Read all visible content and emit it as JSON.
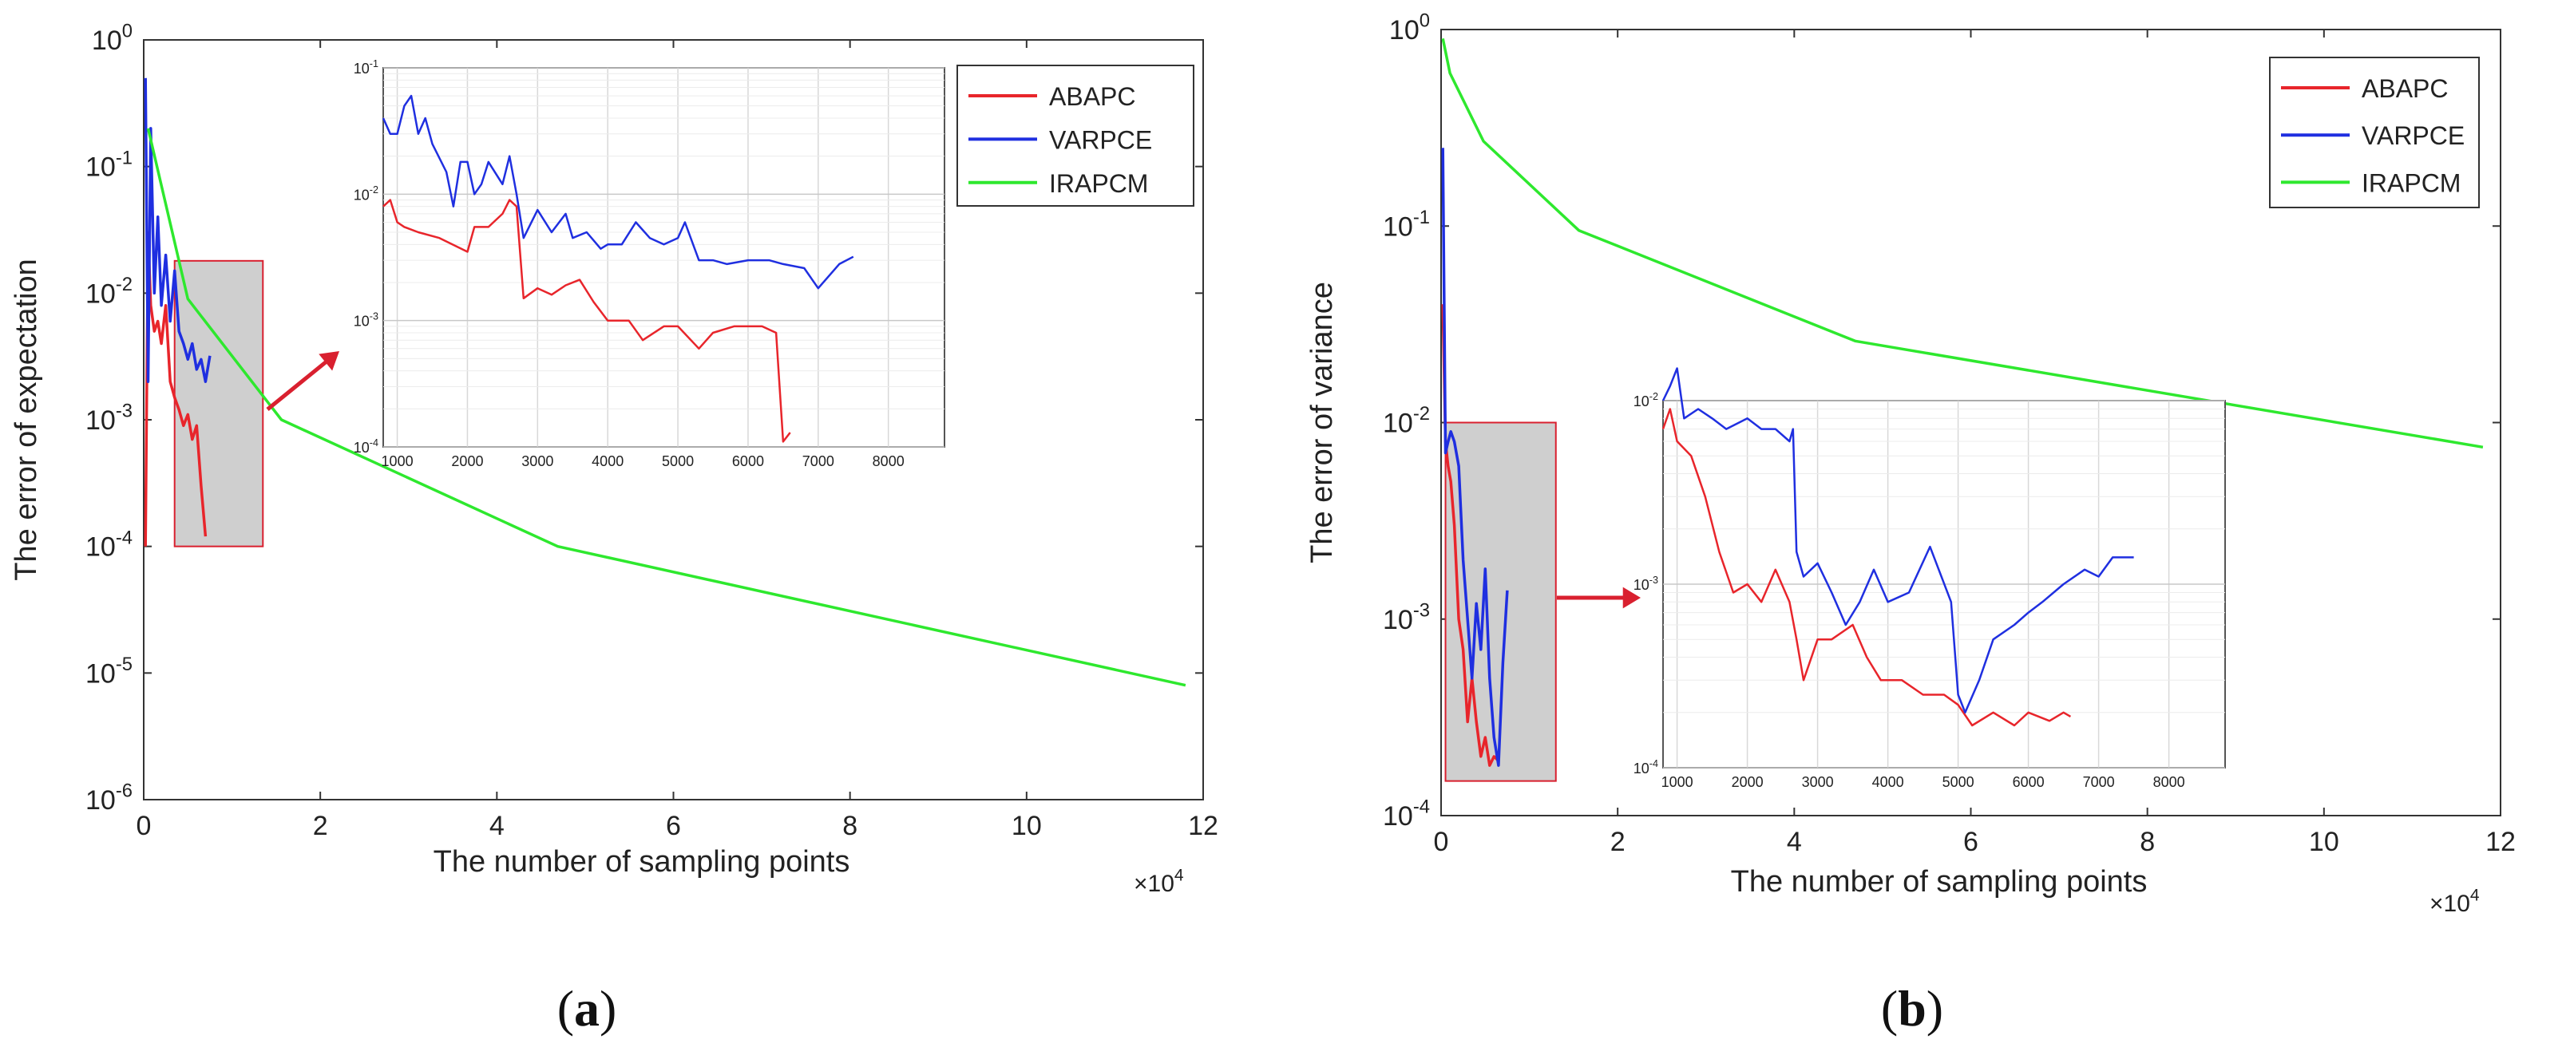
{
  "figure": {
    "colors": {
      "ABAPC": "#e8252b",
      "VARPCE": "#1f2fe0",
      "IRAPCM": "#2ee82e",
      "arrow": "#d9202f",
      "zoom_fill": "#cfcfcf",
      "zoom_stroke": "#d9202f"
    }
  },
  "chart_data": [
    {
      "panel": "a",
      "caption_letter": "a",
      "type": "line",
      "y_scale": "log",
      "xlabel": "The number of sampling points",
      "ylabel": "The error of expectation",
      "x_multiplier": "×10",
      "x_multiplier_exp": "4",
      "xlim": [
        0,
        12
      ],
      "ylim_exp": [
        -6,
        0
      ],
      "x_ticks": [
        "0",
        "2",
        "4",
        "6",
        "8",
        "10",
        "12"
      ],
      "y_ticks": [
        {
          "base": "10",
          "exp": "0"
        },
        {
          "base": "10",
          "exp": "-1"
        },
        {
          "base": "10",
          "exp": "-2"
        },
        {
          "base": "10",
          "exp": "-3"
        },
        {
          "base": "10",
          "exp": "-4"
        },
        {
          "base": "10",
          "exp": "-5"
        },
        {
          "base": "10",
          "exp": "-6"
        }
      ],
      "legend": [
        "ABAPC",
        "VARPCE",
        "IRAPCM"
      ],
      "legend_position": "top-right",
      "zoom_region": {
        "x": [
          0.35,
          1.35
        ],
        "y": [
          0.0001,
          0.018
        ]
      },
      "series": [
        {
          "name": "ABAPC",
          "x": [
            0.02,
            0.05,
            0.08,
            0.12,
            0.16,
            0.2,
            0.25,
            0.3,
            0.35,
            0.4,
            0.45,
            0.5,
            0.55,
            0.6,
            0.65,
            0.7
          ],
          "y": [
            0.0001,
            0.03,
            0.008,
            0.005,
            0.006,
            0.004,
            0.008,
            0.002,
            0.0015,
            0.0012,
            0.0009,
            0.0011,
            0.0007,
            0.0009,
            0.0003,
            0.00012
          ]
        },
        {
          "name": "VARPCE",
          "x": [
            0.02,
            0.05,
            0.08,
            0.12,
            0.16,
            0.2,
            0.25,
            0.3,
            0.35,
            0.4,
            0.45,
            0.5,
            0.55,
            0.6,
            0.65,
            0.7,
            0.75
          ],
          "y": [
            0.5,
            0.002,
            0.2,
            0.01,
            0.04,
            0.008,
            0.02,
            0.006,
            0.015,
            0.005,
            0.004,
            0.003,
            0.004,
            0.0025,
            0.003,
            0.002,
            0.0032
          ]
        },
        {
          "name": "IRAPCM",
          "x": [
            0.05,
            0.5,
            1.56,
            4.69,
            11.8
          ],
          "y": [
            0.2,
            0.009,
            0.001,
            0.0001,
            8e-06
          ]
        }
      ],
      "inset": {
        "type": "line",
        "y_scale": "log",
        "xlim": [
          800,
          8800
        ],
        "ylim_exp": [
          -4,
          -1
        ],
        "x_ticks": [
          "1000",
          "2000",
          "3000",
          "4000",
          "5000",
          "6000",
          "7000",
          "8000"
        ],
        "y_ticks": [
          {
            "base": "10",
            "exp": "-1"
          },
          {
            "base": "10",
            "exp": "-2"
          },
          {
            "base": "10",
            "exp": "-3"
          },
          {
            "base": "10",
            "exp": "-4"
          }
        ],
        "series": [
          {
            "name": "ABAPC",
            "x": [
              800,
              900,
              1000,
              1100,
              1300,
              1600,
              2000,
              2100,
              2300,
              2500,
              2600,
              2700,
              2800,
              3000,
              3200,
              3400,
              3600,
              3800,
              4000,
              4300,
              4500,
              4800,
              5000,
              5300,
              5500,
              5800,
              6000,
              6200,
              6400,
              6500,
              6600
            ],
            "y": [
              0.008,
              0.009,
              0.006,
              0.0055,
              0.005,
              0.0045,
              0.0035,
              0.0055,
              0.0055,
              0.007,
              0.009,
              0.008,
              0.0015,
              0.0018,
              0.0016,
              0.0019,
              0.0021,
              0.0014,
              0.001,
              0.001,
              0.0007,
              0.0009,
              0.0009,
              0.0006,
              0.0008,
              0.0009,
              0.0009,
              0.0009,
              0.0008,
              0.00011,
              0.00013
            ]
          },
          {
            "name": "VARPCE",
            "x": [
              800,
              900,
              1000,
              1100,
              1200,
              1300,
              1400,
              1500,
              1700,
              1800,
              1900,
              2000,
              2100,
              2200,
              2300,
              2500,
              2600,
              2700,
              2800,
              3000,
              3200,
              3400,
              3500,
              3700,
              3900,
              4000,
              4200,
              4400,
              4600,
              4800,
              5000,
              5100,
              5300,
              5500,
              5700,
              6000,
              6300,
              6500,
              6800,
              7000,
              7300,
              7500
            ],
            "y": [
              0.04,
              0.03,
              0.03,
              0.05,
              0.06,
              0.03,
              0.04,
              0.025,
              0.015,
              0.008,
              0.018,
              0.018,
              0.01,
              0.012,
              0.018,
              0.012,
              0.02,
              0.01,
              0.0045,
              0.0075,
              0.005,
              0.007,
              0.0045,
              0.005,
              0.0037,
              0.004,
              0.004,
              0.006,
              0.0045,
              0.004,
              0.0045,
              0.006,
              0.003,
              0.003,
              0.0028,
              0.003,
              0.003,
              0.0028,
              0.0026,
              0.0018,
              0.0028,
              0.0032
            ]
          }
        ]
      }
    },
    {
      "panel": "b",
      "caption_letter": "b",
      "type": "line",
      "y_scale": "log",
      "xlabel": "The number of sampling points",
      "ylabel": "The error of variance",
      "x_multiplier": "×10",
      "x_multiplier_exp": "4",
      "xlim": [
        0,
        12
      ],
      "ylim_exp": [
        -4,
        0
      ],
      "x_ticks": [
        "0",
        "2",
        "4",
        "6",
        "8",
        "10",
        "12"
      ],
      "y_ticks": [
        {
          "base": "10",
          "exp": "0"
        },
        {
          "base": "10",
          "exp": "-1"
        },
        {
          "base": "10",
          "exp": "-2"
        },
        {
          "base": "10",
          "exp": "-3"
        },
        {
          "base": "10",
          "exp": "-4"
        }
      ],
      "legend": [
        "ABAPC",
        "VARPCE",
        "IRAPCM"
      ],
      "legend_position": "top-right",
      "zoom_region": {
        "x": [
          0.05,
          1.3
        ],
        "y": [
          0.00015,
          0.01
        ]
      },
      "series": [
        {
          "name": "ABAPC",
          "x": [
            0.02,
            0.05,
            0.08,
            0.11,
            0.15,
            0.2,
            0.25,
            0.3,
            0.35,
            0.4,
            0.45,
            0.5,
            0.55,
            0.6,
            0.65
          ],
          "y": [
            0.04,
            0.008,
            0.006,
            0.005,
            0.003,
            0.001,
            0.0007,
            0.0003,
            0.0005,
            0.0003,
            0.0002,
            0.00025,
            0.00018,
            0.0002,
            0.00019
          ]
        },
        {
          "name": "VARPCE",
          "x": [
            0.02,
            0.05,
            0.08,
            0.11,
            0.15,
            0.2,
            0.25,
            0.3,
            0.35,
            0.4,
            0.45,
            0.5,
            0.55,
            0.6,
            0.65,
            0.7,
            0.75
          ],
          "y": [
            0.25,
            0.007,
            0.008,
            0.009,
            0.008,
            0.006,
            0.002,
            0.001,
            0.0005,
            0.0012,
            0.0007,
            0.0018,
            0.0005,
            0.00025,
            0.00018,
            0.0006,
            0.0014
          ]
        },
        {
          "name": "IRAPCM",
          "x": [
            0.02,
            0.1,
            0.48,
            1.56,
            4.69,
            11.8
          ],
          "y": [
            0.9,
            0.6,
            0.27,
            0.095,
            0.026,
            0.0075
          ]
        }
      ],
      "inset": {
        "type": "line",
        "y_scale": "log",
        "xlim": [
          800,
          8800
        ],
        "ylim_exp": [
          -4,
          -2
        ],
        "x_ticks": [
          "1000",
          "2000",
          "3000",
          "4000",
          "5000",
          "6000",
          "7000",
          "8000"
        ],
        "y_ticks": [
          {
            "base": "10",
            "exp": "-2"
          },
          {
            "base": "10",
            "exp": "-3"
          },
          {
            "base": "10",
            "exp": "-4"
          }
        ],
        "series": [
          {
            "name": "ABAPC",
            "x": [
              800,
              900,
              1000,
              1200,
              1400,
              1600,
              1800,
              2000,
              2200,
              2400,
              2600,
              2700,
              2800,
              3000,
              3200,
              3500,
              3700,
              3900,
              4200,
              4500,
              4800,
              5000,
              5200,
              5500,
              5800,
              6000,
              6300,
              6500,
              6600
            ],
            "y": [
              0.007,
              0.009,
              0.006,
              0.005,
              0.003,
              0.0015,
              0.0009,
              0.001,
              0.0008,
              0.0012,
              0.0008,
              0.0005,
              0.0003,
              0.0005,
              0.0005,
              0.0006,
              0.0004,
              0.0003,
              0.0003,
              0.00025,
              0.00025,
              0.00022,
              0.00017,
              0.0002,
              0.00017,
              0.0002,
              0.00018,
              0.0002,
              0.00019
            ]
          },
          {
            "name": "VARPCE",
            "x": [
              800,
              900,
              1000,
              1100,
              1300,
              1500,
              1700,
              2000,
              2200,
              2400,
              2600,
              2650,
              2700,
              2800,
              3000,
              3200,
              3400,
              3600,
              3800,
              4000,
              4300,
              4600,
              4900,
              5000,
              5100,
              5300,
              5500,
              5800,
              6000,
              6200,
              6500,
              6800,
              7000,
              7200,
              7500
            ],
            "y": [
              0.01,
              0.012,
              0.015,
              0.008,
              0.009,
              0.008,
              0.007,
              0.008,
              0.007,
              0.007,
              0.006,
              0.007,
              0.0015,
              0.0011,
              0.0013,
              0.0009,
              0.0006,
              0.0008,
              0.0012,
              0.0008,
              0.0009,
              0.0016,
              0.0008,
              0.00025,
              0.0002,
              0.0003,
              0.0005,
              0.0006,
              0.0007,
              0.0008,
              0.001,
              0.0012,
              0.0011,
              0.0014,
              0.0014
            ]
          }
        ]
      }
    }
  ]
}
